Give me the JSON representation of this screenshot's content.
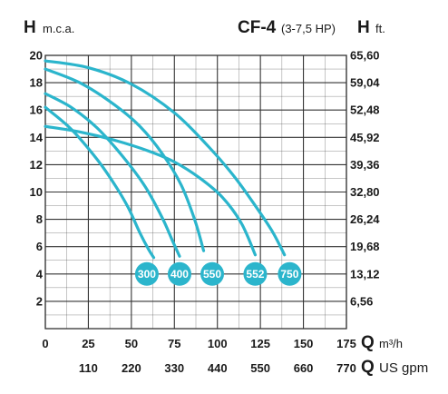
{
  "header": {
    "left_symbol": "H",
    "left_unit": "m.c.a.",
    "model": "CF-4",
    "model_power": "(3-7,5 HP)",
    "right_symbol": "H",
    "right_unit": "ft."
  },
  "axis_labels": {
    "q_symbol_1": "Q",
    "q_unit_1": "m³/h",
    "q_symbol_2": "Q",
    "q_unit_2": "US gpm"
  },
  "colors": {
    "curve": "#2bb5cc",
    "grid": "#333333",
    "text": "#1a1a1a"
  },
  "chart_data": {
    "type": "line",
    "title": "CF-4 (3-7,5 HP)",
    "xlabel": "Q m³/h",
    "x2label": "Q US gpm",
    "ylabel": "H m.c.a.",
    "y2label": "H ft.",
    "xlim": [
      0,
      175
    ],
    "ylim": [
      0,
      20
    ],
    "grid": true,
    "x_ticks": [
      "0",
      "25",
      "50",
      "75",
      "100",
      "125",
      "150",
      "175"
    ],
    "x2_ticks": [
      "110",
      "220",
      "330",
      "440",
      "550",
      "660",
      "770"
    ],
    "y_ticks": [
      "2",
      "4",
      "6",
      "8",
      "10",
      "12",
      "14",
      "16",
      "18",
      "20"
    ],
    "y2_ticks": [
      "6,56",
      "13,12",
      "19,68",
      "26,24",
      "32,80",
      "39,36",
      "45,92",
      "52,48",
      "59,04",
      "65,60"
    ],
    "series": [
      {
        "name": "300",
        "x": [
          0,
          15,
          30,
          40,
          48,
          55,
          60,
          63
        ],
        "y": [
          16.2,
          14.6,
          12.4,
          10.6,
          8.9,
          7.0,
          5.8,
          5.2
        ]
      },
      {
        "name": "400",
        "x": [
          0,
          15,
          30,
          45,
          58,
          68,
          74,
          78
        ],
        "y": [
          17.2,
          16.2,
          14.7,
          12.6,
          10.4,
          8.1,
          6.4,
          5.3
        ]
      },
      {
        "name": "550",
        "x": [
          0,
          20,
          40,
          55,
          68,
          79,
          87,
          92
        ],
        "y": [
          19.0,
          18.0,
          16.4,
          14.8,
          12.8,
          10.5,
          7.9,
          5.7
        ]
      },
      {
        "name": "552",
        "x": [
          0,
          20,
          40,
          60,
          75,
          90,
          103,
          114,
          122
        ],
        "y": [
          14.8,
          14.4,
          13.8,
          13.0,
          12.2,
          11.0,
          9.6,
          7.7,
          5.4
        ]
      },
      {
        "name": "750",
        "x": [
          0,
          25,
          50,
          75,
          95,
          110,
          122,
          132,
          139
        ],
        "y": [
          19.6,
          19.1,
          17.9,
          15.8,
          13.3,
          11.1,
          9.0,
          7.1,
          5.4
        ]
      }
    ],
    "label_points": [
      {
        "name": "300",
        "x": 59,
        "y": 4.0
      },
      {
        "name": "400",
        "x": 78,
        "y": 4.0
      },
      {
        "name": "550",
        "x": 97,
        "y": 4.0
      },
      {
        "name": "552",
        "x": 122,
        "y": 4.0
      },
      {
        "name": "750",
        "x": 142,
        "y": 4.0
      }
    ]
  }
}
